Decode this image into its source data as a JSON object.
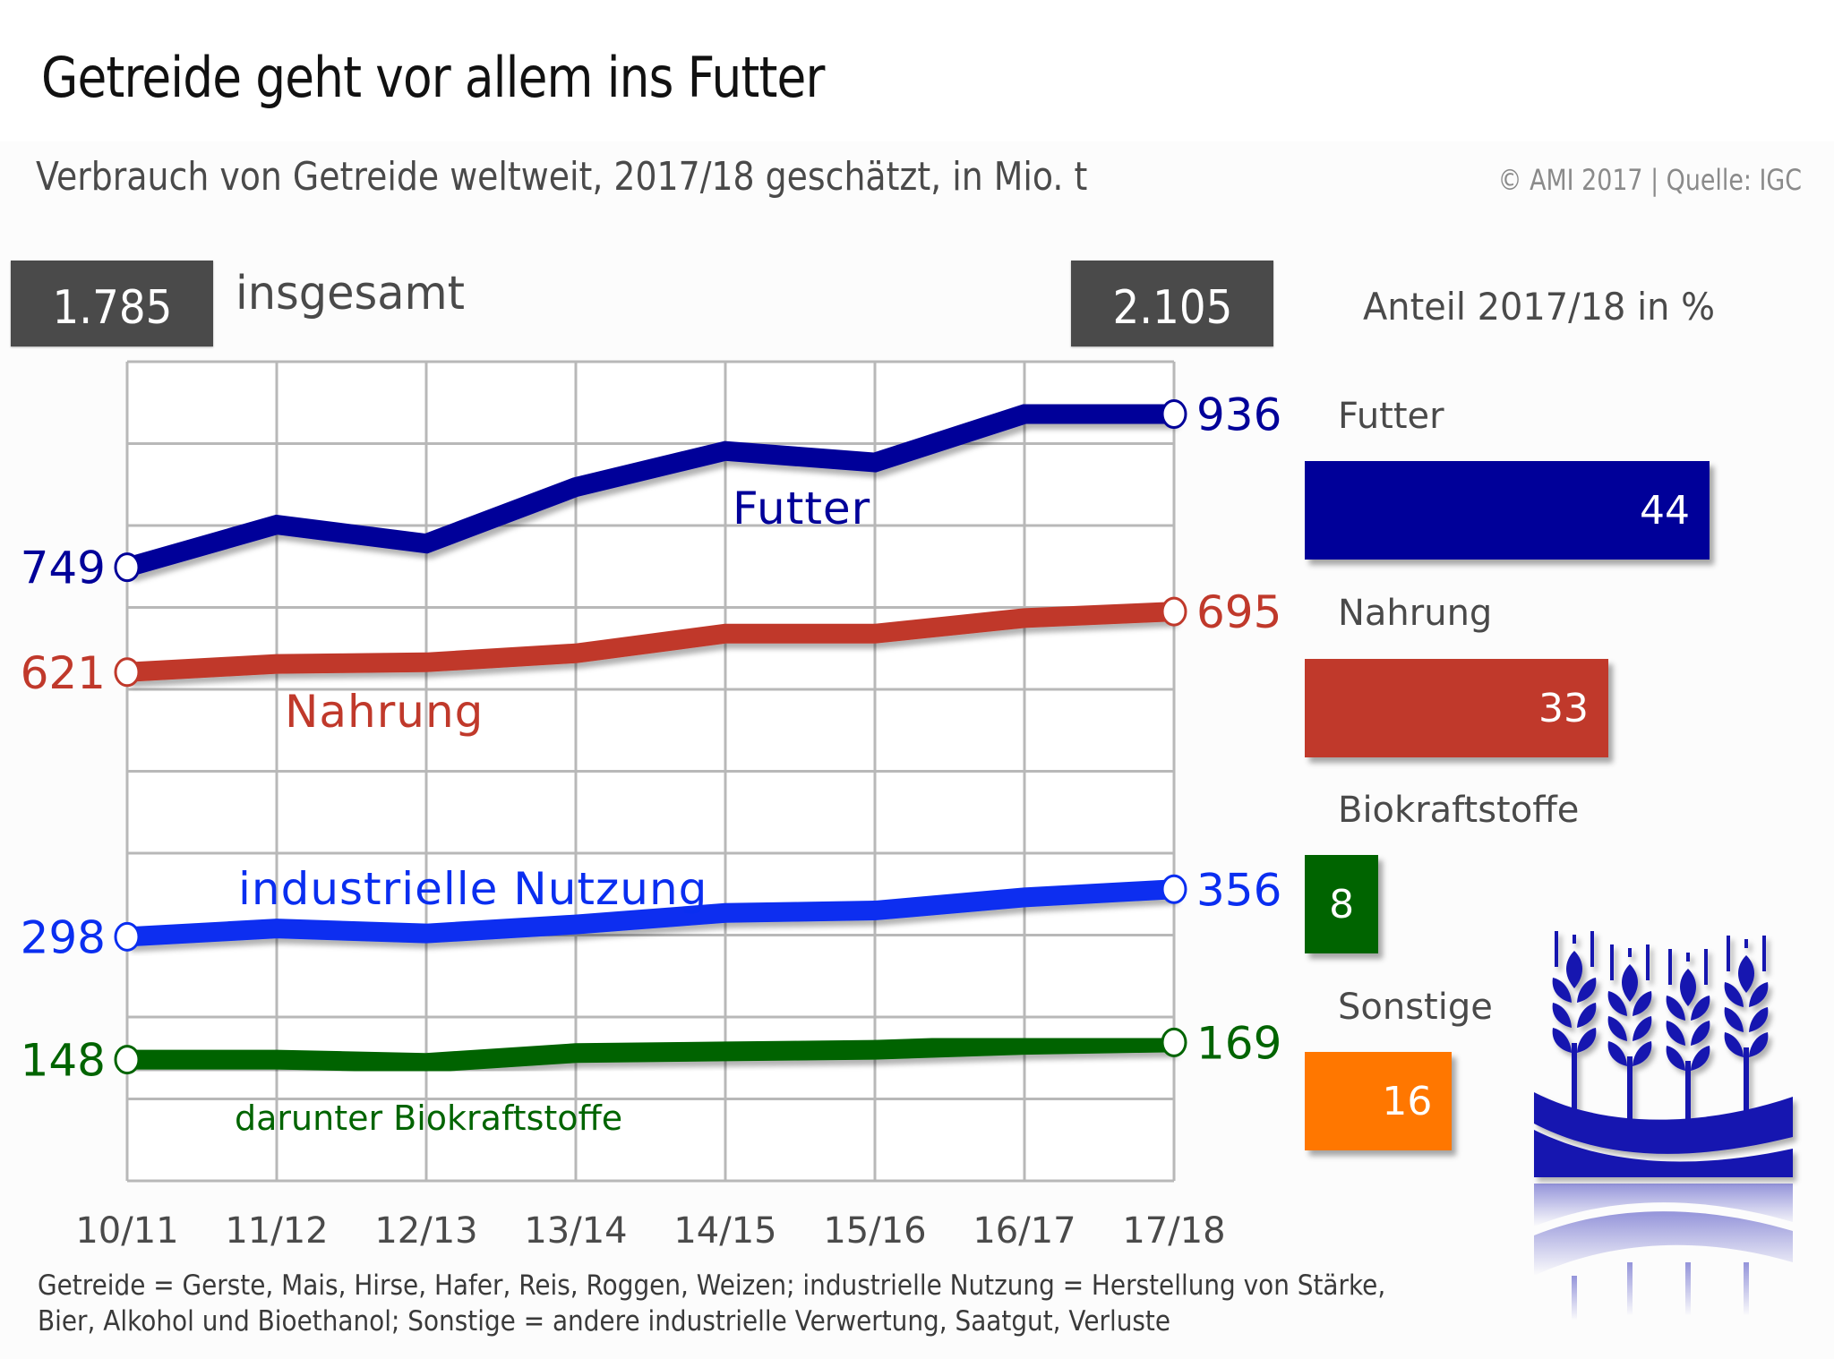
{
  "header": {
    "title": "Getreide geht vor allem ins Futter",
    "subtitle": "Verbrauch von Getreide weltweit, 2017/18 geschätzt, in Mio. t",
    "copyright": "© AMI 2017 | Quelle: IGC"
  },
  "totals": {
    "start_value": "1.785",
    "label": "insgesamt",
    "end_value": "2.105"
  },
  "share": {
    "title": "Anteil 2017/18 in %",
    "items": [
      {
        "label": "Futter",
        "value": 44,
        "value_label": "44",
        "color": "#000099"
      },
      {
        "label": "Nahrung",
        "value": 33,
        "value_label": "33",
        "color": "#C0392B"
      },
      {
        "label": "Biokraftstoffe",
        "value": 8,
        "value_label": "8",
        "color": "#006400"
      },
      {
        "label": "Sonstige",
        "value": 16,
        "value_label": "16",
        "color": "#FF7700"
      }
    ]
  },
  "footnote": {
    "line1": "Getreide = Gerste, Mais, Hirse, Hafer, Reis, Roggen, Weizen; industrielle Nutzung = Herstellung von Stärke,",
    "line2": "Bier, Alkohol und Bioethanol; Sonstige = andere industrielle Verwertung, Saatgut, Verluste"
  },
  "logo": {
    "icon": "wheat-logo-icon",
    "color": "#1515B0"
  },
  "chart_data": [
    {
      "type": "line",
      "title": "Verbrauch von Getreide weltweit, 2017/18 geschätzt, in Mio. t",
      "xlabel": "",
      "ylabel": "Mio. t",
      "ylim": [
        0,
        1000
      ],
      "y_grid_step": 100,
      "grid": true,
      "y_tick_labels_shown": false,
      "categories": [
        "10/11",
        "11/12",
        "12/13",
        "13/14",
        "14/15",
        "15/16",
        "16/17",
        "17/18"
      ],
      "series": [
        {
          "name": "Futter",
          "label": "Futter",
          "color": "#000099",
          "values": [
            749,
            801,
            778,
            847,
            891,
            877,
            936,
            936
          ],
          "start_label": "749",
          "end_label": "936"
        },
        {
          "name": "Nahrung",
          "label": "Nahrung",
          "color": "#C0392B",
          "values": [
            621,
            631,
            633,
            644,
            668,
            668,
            687,
            695
          ],
          "start_label": "621",
          "end_label": "695"
        },
        {
          "name": "industrielle Nutzung",
          "label": "industrielle Nutzung",
          "color": "#0A2EF0",
          "values": [
            298,
            308,
            302,
            313,
            327,
            330,
            346,
            356
          ],
          "start_label": "298",
          "end_label": "356"
        },
        {
          "name": "darunter Biokraftstoffe",
          "label": "darunter Biokraftstoffe",
          "color": "#006400",
          "values": [
            148,
            148,
            144,
            156,
            158,
            160,
            166,
            169
          ],
          "start_label": "148",
          "end_label": "169"
        }
      ],
      "annotations": {
        "total_start": "1.785",
        "total_end": "2.105",
        "total_label": "insgesamt"
      }
    },
    {
      "type": "bar",
      "orientation": "horizontal",
      "title": "Anteil 2017/18 in %",
      "categories": [
        "Futter",
        "Nahrung",
        "Biokraftstoffe",
        "Sonstige"
      ],
      "values": [
        44,
        33,
        8,
        16
      ],
      "colors": [
        "#000099",
        "#C0392B",
        "#006400",
        "#FF7700"
      ],
      "xlim": [
        0,
        44
      ]
    }
  ]
}
